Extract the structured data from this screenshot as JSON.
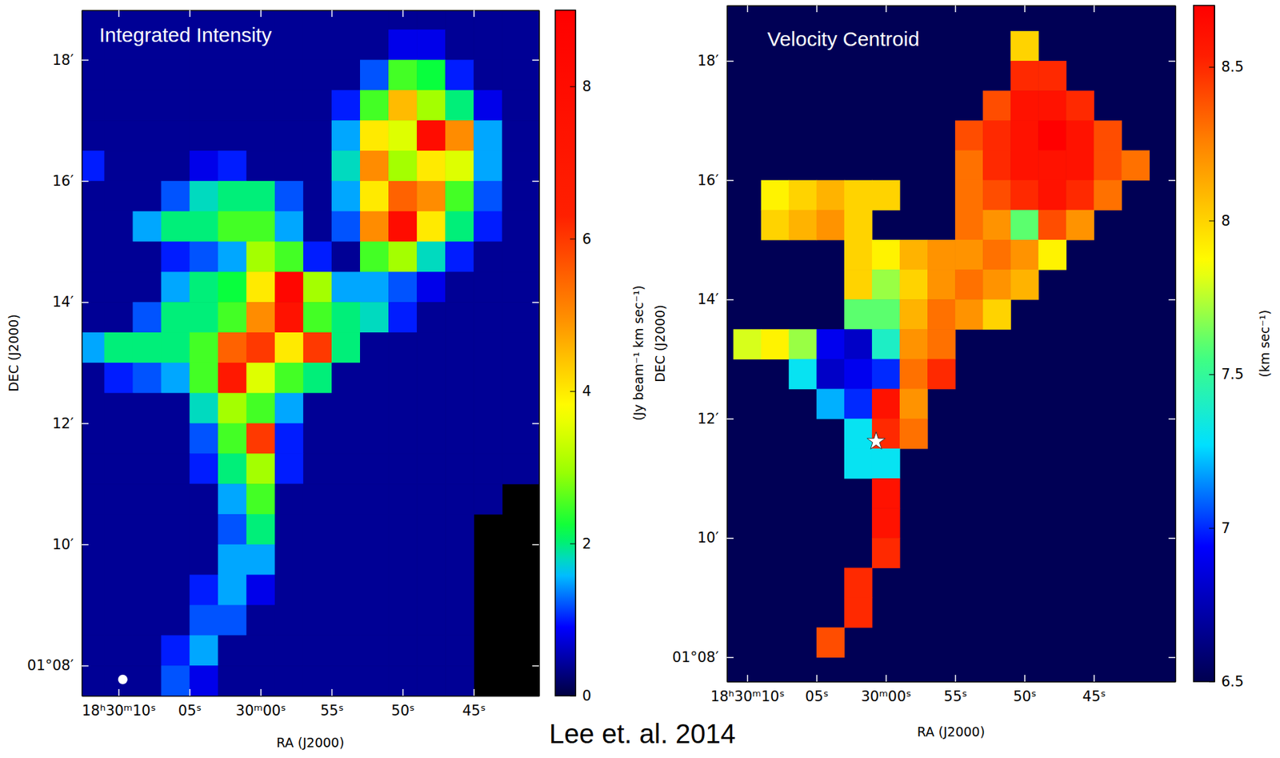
{
  "chart_data": [
    {
      "type": "heatmap",
      "title": "Integrated Intensity",
      "x_label": "RA (J2000)",
      "y_label": "DEC (J2000)",
      "x": [
        66612,
        66610,
        66608,
        66606,
        66604,
        66602,
        66600,
        66598,
        66596,
        66594,
        66592,
        66590,
        66588,
        66586,
        66584,
        66582,
        66580
      ],
      "y": [
        18.75,
        18.25,
        17.75,
        17.25,
        16.75,
        16.25,
        15.75,
        15.25,
        14.75,
        14.25,
        13.75,
        13.25,
        12.75,
        12.25,
        11.75,
        11.25,
        10.75,
        10.25,
        9.75,
        9.25,
        8.75,
        8.25,
        7.75
      ],
      "cells": [
        [
          0.4,
          0.4,
          0.4,
          0.4,
          0.4,
          0.4,
          0.4,
          0.4,
          0.4,
          0.4,
          0.4,
          0.4,
          0.4,
          0.4,
          0.4,
          0.4,
          0.4
        ],
        [
          0.4,
          0.4,
          0.4,
          0.4,
          0.4,
          0.4,
          0.4,
          0.4,
          0.4,
          0.4,
          0.4,
          0.8,
          0.8,
          0.4,
          0.4,
          0.4,
          0.4
        ],
        [
          0.4,
          0.4,
          0.4,
          0.4,
          0.4,
          0.4,
          0.4,
          0.4,
          0.4,
          0.4,
          1.2,
          2.5,
          2.2,
          1.0,
          0.4,
          0.4,
          0.4
        ],
        [
          0.4,
          0.4,
          0.4,
          0.4,
          0.4,
          0.4,
          0.4,
          0.4,
          0.4,
          1.0,
          2.5,
          4.5,
          3.0,
          2.0,
          0.8,
          0.4,
          0.4
        ],
        [
          0.4,
          0.4,
          0.4,
          0.4,
          0.4,
          0.4,
          0.4,
          0.4,
          0.4,
          1.5,
          4.0,
          3.5,
          8.0,
          5.0,
          1.5,
          0.4,
          0.4
        ],
        [
          1.0,
          0.4,
          0.4,
          0.4,
          0.8,
          1.0,
          0.4,
          0.4,
          0.4,
          1.8,
          5.0,
          3.0,
          4.0,
          3.5,
          1.5,
          0.4,
          0.4
        ],
        [
          0.4,
          0.4,
          0.4,
          1.2,
          1.8,
          2.0,
          2.0,
          1.2,
          0.4,
          1.5,
          4.0,
          5.5,
          5.0,
          2.5,
          1.2,
          0.4,
          0.4
        ],
        [
          0.4,
          0.4,
          1.5,
          2.0,
          2.0,
          2.5,
          2.5,
          1.5,
          0.4,
          1.2,
          5.0,
          8.0,
          4.0,
          2.0,
          1.0,
          0.4,
          0.4
        ],
        [
          0.4,
          0.4,
          0.4,
          1.0,
          1.2,
          1.5,
          3.0,
          2.5,
          1.0,
          0.4,
          2.5,
          3.0,
          1.8,
          1.0,
          0.4,
          0.4,
          0.4
        ],
        [
          0.4,
          0.4,
          0.4,
          1.5,
          2.0,
          2.2,
          4.0,
          8.5,
          3.0,
          1.5,
          1.5,
          1.2,
          0.8,
          0.4,
          0.4,
          0.4,
          0.4
        ],
        [
          0.4,
          0.4,
          1.2,
          2.0,
          2.0,
          2.5,
          5.0,
          7.5,
          2.5,
          2.0,
          1.8,
          1.0,
          0.4,
          0.4,
          0.4,
          0.4,
          0.4
        ],
        [
          1.5,
          2.0,
          2.0,
          2.0,
          2.5,
          5.5,
          6.0,
          4.0,
          6.0,
          2.0,
          0.4,
          0.4,
          0.4,
          0.4,
          0.4,
          0.4,
          0.4
        ],
        [
          0.4,
          1.0,
          1.2,
          1.5,
          2.5,
          7.0,
          3.5,
          2.5,
          2.0,
          0.4,
          0.4,
          0.4,
          0.4,
          0.4,
          0.4,
          0.4,
          0.4
        ],
        [
          0.4,
          0.4,
          0.4,
          0.4,
          1.8,
          3.0,
          2.5,
          1.5,
          0.4,
          0.4,
          0.4,
          0.4,
          0.4,
          0.4,
          0.4,
          0.4,
          0.4
        ],
        [
          0.4,
          0.4,
          0.4,
          0.4,
          1.2,
          2.5,
          6.0,
          1.0,
          0.4,
          0.4,
          0.4,
          0.4,
          0.4,
          0.4,
          0.4,
          0.4,
          0.4
        ],
        [
          0.4,
          0.4,
          0.4,
          0.4,
          1.0,
          2.0,
          3.0,
          1.0,
          0.4,
          0.4,
          0.4,
          0.4,
          0.4,
          0.4,
          0.4,
          0.4,
          0.4
        ],
        [
          0.4,
          0.4,
          0.4,
          0.4,
          0.4,
          1.5,
          2.5,
          0.4,
          0.4,
          0.4,
          0.4,
          0.4,
          0.4,
          0.4,
          0.4,
          null,
          null
        ],
        [
          0.4,
          0.4,
          0.4,
          0.4,
          0.4,
          1.2,
          2.0,
          0.4,
          0.4,
          0.4,
          0.4,
          0.4,
          0.4,
          0.4,
          null,
          null,
          null
        ],
        [
          0.4,
          0.4,
          0.4,
          0.4,
          0.4,
          1.5,
          1.5,
          0.4,
          0.4,
          0.4,
          0.4,
          0.4,
          0.4,
          0.4,
          null,
          null,
          null
        ],
        [
          0.4,
          0.4,
          0.4,
          0.4,
          1.0,
          1.5,
          0.8,
          0.4,
          0.4,
          0.4,
          0.4,
          0.4,
          0.4,
          0.4,
          null,
          null,
          null
        ],
        [
          0.4,
          0.4,
          0.4,
          0.4,
          1.2,
          1.2,
          0.4,
          0.4,
          0.4,
          0.4,
          0.4,
          0.4,
          0.4,
          0.4,
          null,
          null,
          null
        ],
        [
          0.4,
          0.4,
          0.4,
          1.0,
          1.5,
          0.4,
          0.4,
          0.4,
          0.4,
          0.4,
          0.4,
          0.4,
          0.4,
          0.4,
          null,
          null,
          null
        ],
        [
          0.4,
          0.4,
          0.4,
          1.2,
          0.8,
          0.4,
          0.4,
          0.4,
          0.4,
          0.4,
          0.4,
          0.4,
          0.4,
          0.4,
          null,
          null,
          null
        ]
      ],
      "xlim": [
        66612.59,
        66580.4
      ],
      "ylim": [
        7.5,
        18.82
      ],
      "xticks": [
        {
          "value": 66610,
          "label": "18ʰ30ᵐ10ˢ"
        },
        {
          "value": 66605,
          "label": "05ˢ"
        },
        {
          "value": 66600,
          "label": "30ᵐ00ˢ"
        },
        {
          "value": 66595,
          "label": "55ˢ"
        },
        {
          "value": 66590,
          "label": "50ˢ"
        },
        {
          "value": 66585,
          "label": "45ˢ"
        }
      ],
      "yticks": [
        {
          "value": 8,
          "label": "01°08′"
        },
        {
          "value": 10,
          "label": "10′"
        },
        {
          "value": 12,
          "label": "12′"
        },
        {
          "value": 14,
          "label": "14′"
        },
        {
          "value": 16,
          "label": "16′"
        },
        {
          "value": 18,
          "label": "18′"
        }
      ],
      "colorbar_label": "(Jy beam⁻¹ km sec⁻¹)",
      "colorbar_range": [
        0,
        9
      ],
      "colorbar_ticks": [
        0,
        2,
        4,
        6,
        8
      ],
      "beam": {
        "x": 66609.7,
        "y": 7.77
      }
    },
    {
      "type": "heatmap",
      "title": "Velocity Centroid",
      "x_label": "RA (J2000)",
      "y_label": "DEC (J2000)",
      "x": [
        66612,
        66610,
        66608,
        66606,
        66604,
        66602,
        66600,
        66598,
        66596,
        66594,
        66592,
        66590,
        66588,
        66586,
        66584,
        66582,
        66580
      ],
      "y": [
        18.75,
        18.25,
        17.75,
        17.25,
        16.75,
        16.25,
        15.75,
        15.25,
        14.75,
        14.25,
        13.75,
        13.25,
        12.75,
        12.25,
        11.75,
        11.25,
        10.75,
        10.25,
        9.75,
        9.25,
        8.75,
        8.25,
        7.75
      ],
      "cells": [
        [
          null,
          null,
          null,
          null,
          null,
          null,
          null,
          null,
          null,
          null,
          null,
          null,
          null,
          null,
          null,
          null,
          null
        ],
        [
          null,
          null,
          null,
          null,
          null,
          null,
          null,
          null,
          null,
          null,
          null,
          8.0,
          null,
          null,
          null,
          null,
          null
        ],
        [
          null,
          null,
          null,
          null,
          null,
          null,
          null,
          null,
          null,
          null,
          null,
          8.5,
          8.5,
          null,
          null,
          null,
          null
        ],
        [
          null,
          null,
          null,
          null,
          null,
          null,
          null,
          null,
          null,
          null,
          8.4,
          8.6,
          8.6,
          8.5,
          null,
          null,
          null
        ],
        [
          null,
          null,
          null,
          null,
          null,
          null,
          null,
          null,
          null,
          8.4,
          8.5,
          8.6,
          8.7,
          8.6,
          8.4,
          null,
          null
        ],
        [
          null,
          null,
          null,
          null,
          null,
          null,
          null,
          null,
          null,
          8.3,
          8.5,
          8.6,
          8.6,
          8.6,
          8.4,
          8.3,
          null
        ],
        [
          null,
          null,
          7.9,
          8.0,
          8.1,
          8.0,
          8.0,
          null,
          null,
          8.3,
          8.4,
          8.5,
          8.6,
          8.5,
          8.3,
          null,
          null
        ],
        [
          null,
          null,
          8.0,
          8.1,
          8.2,
          8.0,
          null,
          null,
          null,
          8.3,
          8.2,
          7.6,
          8.4,
          8.2,
          null,
          null,
          null
        ],
        [
          null,
          null,
          null,
          null,
          null,
          8.0,
          7.9,
          8.1,
          8.2,
          8.2,
          8.3,
          8.2,
          7.9,
          null,
          null,
          null,
          null
        ],
        [
          null,
          null,
          null,
          null,
          null,
          8.0,
          7.7,
          8.0,
          8.2,
          8.3,
          8.2,
          8.1,
          null,
          null,
          null,
          null,
          null
        ],
        [
          null,
          null,
          null,
          null,
          null,
          7.6,
          7.6,
          8.1,
          8.3,
          8.2,
          8.0,
          null,
          null,
          null,
          null,
          null,
          null
        ],
        [
          null,
          7.8,
          7.9,
          7.7,
          6.9,
          6.8,
          7.4,
          8.2,
          8.3,
          null,
          null,
          null,
          null,
          null,
          null,
          null,
          null
        ],
        [
          null,
          null,
          null,
          7.3,
          6.8,
          6.9,
          7.0,
          8.3,
          8.5,
          null,
          null,
          null,
          null,
          null,
          null,
          null,
          null
        ],
        [
          null,
          null,
          null,
          null,
          7.2,
          7.0,
          8.6,
          8.2,
          null,
          null,
          null,
          null,
          null,
          null,
          null,
          null,
          null
        ],
        [
          null,
          null,
          null,
          null,
          null,
          7.3,
          8.5,
          8.3,
          null,
          null,
          null,
          null,
          null,
          null,
          null,
          null,
          null
        ],
        [
          null,
          null,
          null,
          null,
          null,
          7.3,
          7.3,
          null,
          null,
          null,
          null,
          null,
          null,
          null,
          null,
          null,
          null
        ],
        [
          null,
          null,
          null,
          null,
          null,
          null,
          8.6,
          null,
          null,
          null,
          null,
          null,
          null,
          null,
          null,
          null,
          null
        ],
        [
          null,
          null,
          null,
          null,
          null,
          null,
          8.6,
          null,
          null,
          null,
          null,
          null,
          null,
          null,
          null,
          null,
          null
        ],
        [
          null,
          null,
          null,
          null,
          null,
          null,
          8.5,
          null,
          null,
          null,
          null,
          null,
          null,
          null,
          null,
          null,
          null
        ],
        [
          null,
          null,
          null,
          null,
          null,
          8.5,
          null,
          null,
          null,
          null,
          null,
          null,
          null,
          null,
          null,
          null,
          null
        ],
        [
          null,
          null,
          null,
          null,
          null,
          8.5,
          null,
          null,
          null,
          null,
          null,
          null,
          null,
          null,
          null,
          null,
          null
        ],
        [
          null,
          null,
          null,
          null,
          8.4,
          null,
          null,
          null,
          null,
          null,
          null,
          null,
          null,
          null,
          null,
          null,
          null
        ],
        [
          null,
          null,
          null,
          null,
          null,
          null,
          null,
          null,
          null,
          null,
          null,
          null,
          null,
          null,
          null,
          null,
          null
        ]
      ],
      "xlim": [
        66611.47,
        66579.12
      ],
      "ylim": [
        7.59,
        18.93
      ],
      "xticks": [
        {
          "value": 66610,
          "label": "18ʰ30ᵐ10ˢ"
        },
        {
          "value": 66605,
          "label": "05ˢ"
        },
        {
          "value": 66600,
          "label": "30ᵐ00ˢ"
        },
        {
          "value": 66595,
          "label": "55ˢ"
        },
        {
          "value": 66590,
          "label": "50ˢ"
        },
        {
          "value": 66585,
          "label": "45ˢ"
        }
      ],
      "yticks": [
        {
          "value": 8,
          "label": "01°08′"
        },
        {
          "value": 10,
          "label": "10′"
        },
        {
          "value": 12,
          "label": "12′"
        },
        {
          "value": 14,
          "label": "14′"
        },
        {
          "value": 16,
          "label": "16′"
        },
        {
          "value": 18,
          "label": "18′"
        }
      ],
      "colorbar_label": "(km sec⁻¹)",
      "colorbar_range": [
        6.5,
        8.7
      ],
      "colorbar_ticks": [
        6.5,
        7,
        7.5,
        8,
        8.5
      ],
      "star": {
        "x": 66600.7,
        "y": 11.62
      }
    }
  ],
  "caption": "Lee et. al. 2014"
}
